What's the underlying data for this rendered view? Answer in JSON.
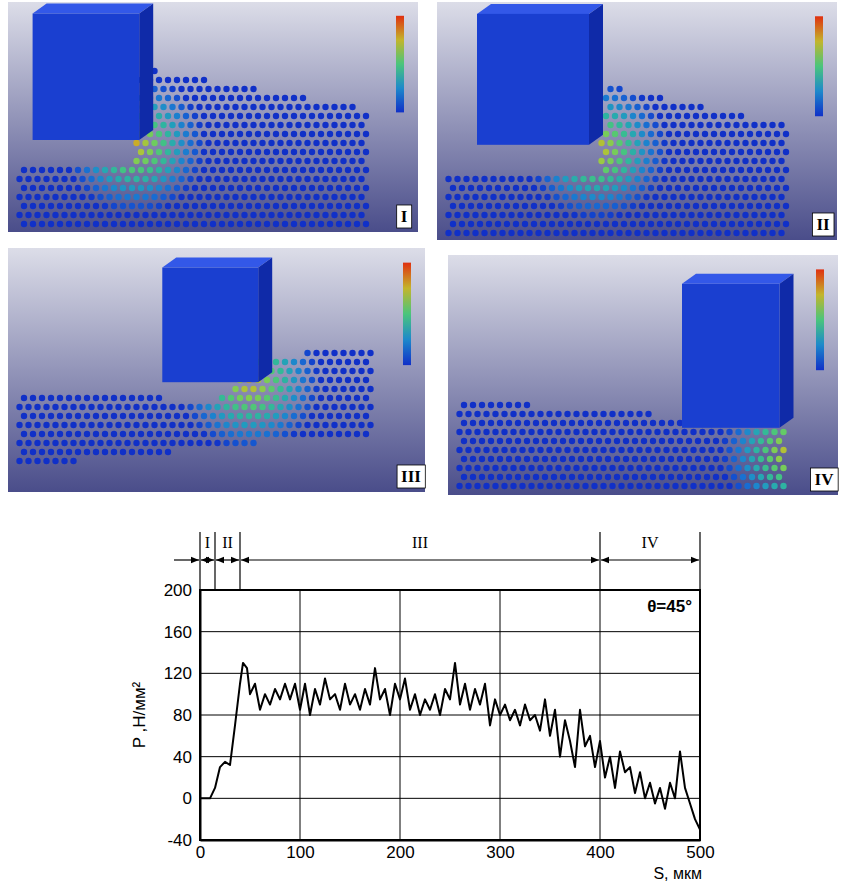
{
  "chart_data": {
    "type": "line",
    "panels": [
      {
        "label": "I"
      },
      {
        "label": "II"
      },
      {
        "label": "III"
      },
      {
        "label": "IV"
      }
    ],
    "phases": [
      {
        "label": "I",
        "start": 0,
        "end": 15
      },
      {
        "label": "II",
        "start": 15,
        "end": 40
      },
      {
        "label": "III",
        "start": 40,
        "end": 400
      },
      {
        "label": "IV",
        "start": 400,
        "end": 500
      }
    ],
    "xlabel": "S, мкм",
    "ylabel": "P ,Н/мм²",
    "annotations": [
      {
        "text": "θ=45°"
      }
    ],
    "x": [
      0,
      5,
      10,
      15,
      20,
      25,
      30,
      35,
      40,
      43,
      47,
      50,
      55,
      60,
      65,
      70,
      75,
      80,
      85,
      90,
      95,
      100,
      105,
      110,
      115,
      120,
      125,
      130,
      135,
      140,
      145,
      150,
      155,
      160,
      165,
      170,
      175,
      180,
      185,
      190,
      195,
      200,
      205,
      210,
      215,
      220,
      225,
      230,
      235,
      240,
      245,
      250,
      255,
      260,
      265,
      270,
      275,
      280,
      285,
      290,
      295,
      300,
      305,
      310,
      315,
      320,
      325,
      330,
      335,
      340,
      345,
      350,
      355,
      360,
      365,
      370,
      375,
      380,
      385,
      390,
      395,
      400,
      405,
      410,
      415,
      420,
      425,
      430,
      435,
      440,
      445,
      450,
      455,
      460,
      465,
      470,
      475,
      480,
      485,
      490,
      495,
      500
    ],
    "series": [
      {
        "color": "#000000",
        "values": [
          0,
          0,
          0,
          10,
          30,
          35,
          32,
          70,
          110,
          130,
          125,
          100,
          110,
          85,
          100,
          90,
          105,
          95,
          110,
          95,
          110,
          85,
          110,
          80,
          105,
          90,
          115,
          95,
          100,
          85,
          110,
          90,
          100,
          85,
          105,
          90,
          125,
          95,
          105,
          80,
          110,
          95,
          115,
          85,
          100,
          80,
          95,
          85,
          100,
          80,
          105,
          95,
          130,
          90,
          110,
          85,
          105,
          90,
          110,
          70,
          95,
          80,
          90,
          75,
          85,
          70,
          90,
          75,
          80,
          65,
          95,
          60,
          85,
          40,
          75,
          55,
          30,
          85,
          50,
          60,
          30,
          55,
          20,
          40,
          10,
          45,
          25,
          30,
          5,
          25,
          0,
          15,
          -5,
          10,
          -10,
          15,
          0,
          45,
          10,
          -5,
          -20,
          -30
        ]
      }
    ],
    "xlim": [
      0,
      500
    ],
    "ylim": [
      -40,
      200
    ],
    "xticks": [
      0,
      100,
      200,
      300,
      400,
      500
    ],
    "yticks": [
      -40,
      0,
      40,
      80,
      120,
      160,
      200
    ],
    "grid": true
  }
}
